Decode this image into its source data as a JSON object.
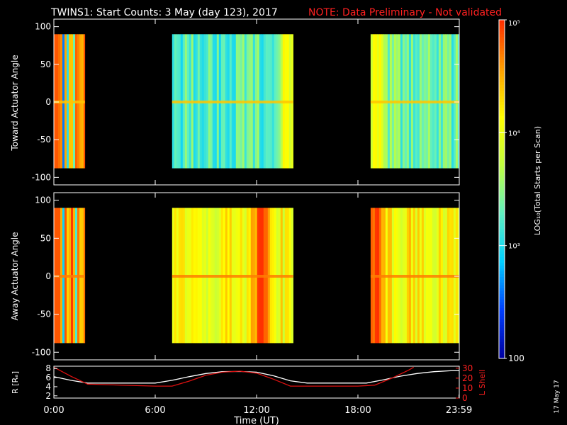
{
  "title": {
    "main": "TWINS1: Start Counts:  3 May (day 123), 2017",
    "note": "NOTE: Data Preliminary - Not validated",
    "note_color": "#ff2020"
  },
  "stamp": "17 May 17",
  "colorbar": {
    "label": "LOG₁₀(Total Starts per Scan)",
    "ticks": [
      "10⁵",
      "10⁴",
      "10³",
      "100"
    ],
    "tick_values": [
      5,
      4,
      3,
      2
    ],
    "range_log": [
      2,
      5
    ],
    "colormap": [
      "#0000a0",
      "#0040ff",
      "#00d0ff",
      "#60f0c0",
      "#c0ff40",
      "#ffff00",
      "#ffa000",
      "#ff3000"
    ]
  },
  "chart_data": [
    {
      "type": "heatmap",
      "name": "toward",
      "ylabel": "Toward Actuator Angle",
      "ylim": [
        -110,
        110
      ],
      "yticks": [
        -100,
        -50,
        0,
        50,
        100
      ],
      "data_y_range": [
        -88,
        90
      ],
      "xlim_hours": [
        0,
        24
      ],
      "segments": [
        {
          "start": "0:00",
          "end": "1:50",
          "level": 0.86,
          "spikes": [
            {
              "t": 0.5,
              "level": 0.2
            },
            {
              "t": 0.8,
              "level": 0.35
            },
            {
              "t": 1.1,
              "level": 0.45
            }
          ]
        },
        {
          "start": "7:00",
          "end": "14:10",
          "level": 0.42,
          "enhanced_time": "13:40"
        },
        {
          "start": "18:45",
          "end": "24:00",
          "level": 0.45,
          "enhanced_time": "18:55"
        }
      ],
      "zero_band_level": 0.8
    },
    {
      "type": "heatmap",
      "name": "away",
      "ylabel": "Away Actuator Angle",
      "ylim": [
        -110,
        110
      ],
      "yticks": [
        -100,
        -50,
        0,
        50,
        100
      ],
      "data_y_range": [
        -88,
        90
      ],
      "xlim_hours": [
        0,
        24
      ],
      "segments": [
        {
          "start": "0:00",
          "end": "1:50",
          "level": 0.88,
          "spikes": [
            {
              "t": 0.5,
              "level": 0.3
            },
            {
              "t": 1.2,
              "level": 0.4
            }
          ]
        },
        {
          "start": "7:00",
          "end": "14:10",
          "level": 0.7,
          "enhanced_time": "12:20"
        },
        {
          "start": "18:45",
          "end": "24:00",
          "level": 0.72,
          "enhanced_time": "18:55"
        }
      ],
      "zero_band_level": 0.9
    },
    {
      "type": "line",
      "name": "orbit",
      "ylabel_left": "R [Rₑ]",
      "ylabel_right": "L Shell",
      "xlabel": "Time (UT)",
      "xticks": [
        "0:00",
        "6:00",
        "12:00",
        "18:00",
        "23:59"
      ],
      "xtick_hours": [
        0,
        6,
        12,
        18,
        23.983
      ],
      "left_ylim": [
        1.5,
        8.5
      ],
      "left_yticks": [
        2,
        4,
        6,
        8
      ],
      "right_ylim": [
        0,
        32
      ],
      "right_yticks": [
        0,
        10,
        20,
        30
      ],
      "series": [
        {
          "axis": "left",
          "color": "#ffffff",
          "points": [
            [
              0,
              6.2
            ],
            [
              1,
              5.4
            ],
            [
              2,
              4.8
            ],
            [
              4,
              4.8
            ],
            [
              6,
              4.8
            ],
            [
              7,
              5.4
            ],
            [
              8,
              6.2
            ],
            [
              9,
              6.9
            ],
            [
              10,
              7.3
            ],
            [
              11,
              7.35
            ],
            [
              12,
              7.2
            ],
            [
              13,
              6.4
            ],
            [
              14,
              5.3
            ],
            [
              15,
              4.8
            ],
            [
              17,
              4.8
            ],
            [
              18.5,
              4.8
            ],
            [
              19.5,
              5.5
            ],
            [
              20.5,
              6.3
            ],
            [
              21.5,
              6.9
            ],
            [
              22.5,
              7.3
            ],
            [
              23.5,
              7.5
            ],
            [
              24,
              7.5
            ]
          ]
        },
        {
          "axis": "right",
          "color": "#dd1010",
          "points": [
            [
              0,
              31
            ],
            [
              1,
              22
            ],
            [
              2,
              14
            ],
            [
              4,
              13
            ],
            [
              6,
              12
            ],
            [
              7,
              12
            ],
            [
              8,
              17
            ],
            [
              9,
              23
            ],
            [
              10,
              26
            ],
            [
              11,
              27
            ],
            [
              12,
              25
            ],
            [
              13,
              19
            ],
            [
              14,
              12
            ],
            [
              16,
              12
            ],
            [
              18,
              12
            ],
            [
              19,
              13
            ],
            [
              20,
              20
            ],
            [
              21,
              28
            ],
            [
              21.3,
              31
            ]
          ]
        }
      ]
    }
  ]
}
